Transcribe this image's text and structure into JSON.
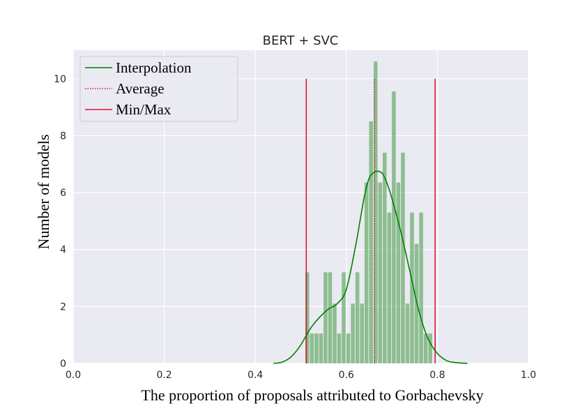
{
  "chart_data": {
    "type": "bar",
    "title": "BERT + SVC",
    "xlabel": "The proportion of proposals attributed to Gorbachevsky",
    "ylabel": "Number of models",
    "xlim": [
      0.0,
      1.0
    ],
    "ylim": [
      0,
      11
    ],
    "grid": true,
    "legend_position": "top-left",
    "xticks": [
      "0.0",
      "0.2",
      "0.4",
      "0.6",
      "0.8",
      "1.0"
    ],
    "yticks": [
      "0",
      "2",
      "4",
      "6",
      "8",
      "10"
    ],
    "bin_width": 0.01,
    "histogram": {
      "bin_starts": [
        0.51,
        0.52,
        0.53,
        0.54,
        0.55,
        0.56,
        0.57,
        0.58,
        0.59,
        0.6,
        0.61,
        0.62,
        0.63,
        0.64,
        0.65,
        0.66,
        0.67,
        0.68,
        0.69,
        0.7,
        0.71,
        0.72,
        0.73,
        0.74,
        0.75,
        0.76,
        0.77,
        0.78
      ],
      "counts": [
        3.2,
        1.05,
        1.05,
        1.05,
        3.2,
        3.2,
        2.1,
        1.05,
        3.2,
        1.05,
        2.1,
        3.2,
        2.1,
        6.35,
        8.5,
        10.6,
        6.35,
        7.4,
        5.3,
        9.55,
        6.35,
        7.4,
        2.1,
        5.3,
        4.2,
        5.3,
        1.05,
        1.05
      ],
      "color": "#5aa55a"
    },
    "series": [
      {
        "name": "Interpolation",
        "style": "solid",
        "color": "#008000",
        "x": [
          0.44,
          0.46,
          0.48,
          0.5,
          0.52,
          0.54,
          0.56,
          0.58,
          0.6,
          0.62,
          0.63,
          0.64,
          0.65,
          0.66,
          0.67,
          0.68,
          0.69,
          0.7,
          0.72,
          0.74,
          0.76,
          0.78,
          0.8,
          0.82,
          0.84,
          0.866
        ],
        "y": [
          0.0,
          0.05,
          0.25,
          0.65,
          1.2,
          1.6,
          1.9,
          2.1,
          2.6,
          4.1,
          5.0,
          5.9,
          6.5,
          6.7,
          6.75,
          6.65,
          6.3,
          5.8,
          4.6,
          3.2,
          1.8,
          0.85,
          0.35,
          0.1,
          0.03,
          0.0
        ]
      },
      {
        "name": "Average",
        "style": "dotted",
        "color": "#dc143c",
        "x": [
          0.662,
          0.662
        ],
        "y": [
          0,
          10
        ]
      },
      {
        "name": "Min/Max",
        "style": "solid",
        "color": "#dc143c",
        "x": [
          0.512,
          0.795
        ],
        "y": [
          0,
          10
        ]
      }
    ]
  }
}
